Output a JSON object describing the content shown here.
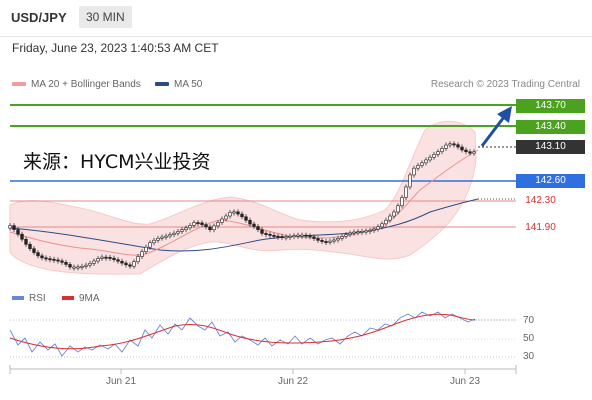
{
  "header": {
    "pair": "USD/JPY",
    "timeframe": "30 MIN"
  },
  "date_line": "Friday, June 23, 2023 1:40:53 AM CET",
  "legend": {
    "ma20": "MA 20 + Bollinger Bands",
    "ma50": "MA 50"
  },
  "credit": "Research © 2023 Trading Central",
  "watermark": "来源：HYCM兴业投资",
  "levels": {
    "r2": "143.70",
    "r1": "143.40",
    "last": "143.10",
    "s1": "142.60",
    "s2": "142.30",
    "s3": "141.90"
  },
  "rsi": {
    "label": "RSI",
    "ma_label": "9MA",
    "ticks": [
      "70",
      "50",
      "30"
    ]
  },
  "xaxis": {
    "ticks": [
      "Jun 21",
      "Jun 22",
      "Jun 23"
    ]
  },
  "colors": {
    "green": "#4aa21f",
    "blue": "#2f6fe0",
    "red": "#d93030",
    "ma20": "#f29b9b",
    "ma50": "#2e4a86"
  }
}
